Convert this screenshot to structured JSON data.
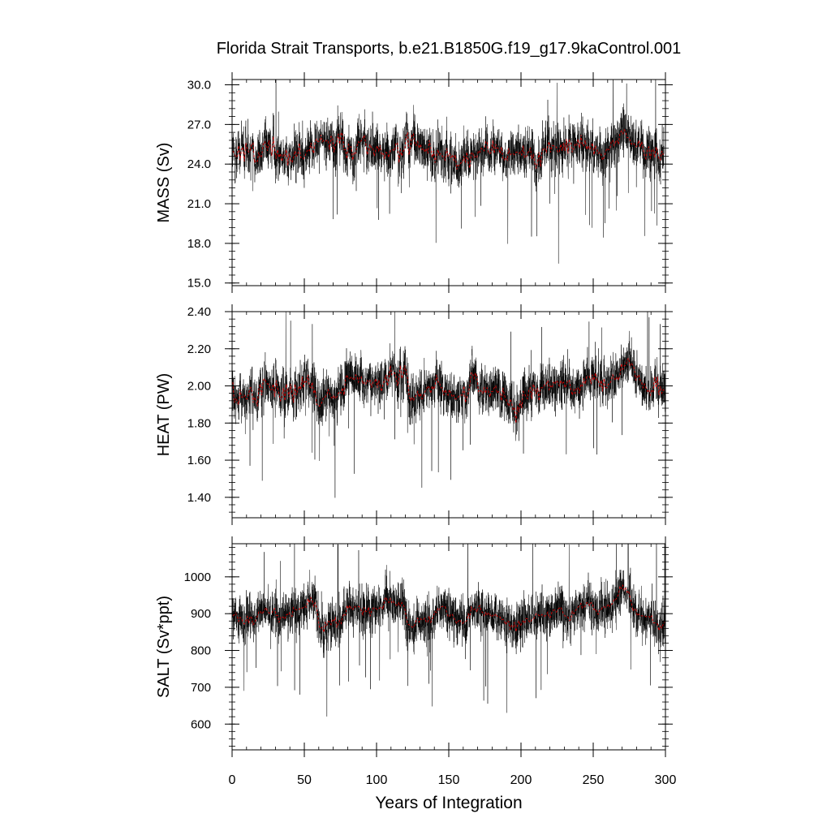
{
  "chart_data": {
    "type": "line",
    "title": "Florida Strait Transports, b.e21.B1850G.f19_g17.9kaControl.001",
    "xlabel": "Years of Integration",
    "xlim": [
      0,
      300
    ],
    "x_ticks": [
      "0",
      "50",
      "100",
      "150",
      "200",
      "250",
      "300"
    ],
    "colors": {
      "monthly": "#000000",
      "annual": "#cc0000",
      "axes": "#000000"
    },
    "panels": [
      {
        "ylabel": "MASS (Sv)",
        "ylim": [
          14.8,
          30.4
        ],
        "y_ticks": [
          "15.0",
          "18.0",
          "21.0",
          "24.0",
          "27.0",
          "30.0"
        ],
        "mean": 25.0,
        "annual_means": [
          25.0,
          24.8,
          24.5,
          24.6,
          25.4,
          24.3,
          25.1,
          25.3,
          24.2,
          25.6,
          25.1,
          24.9,
          25.0,
          25.5,
          25.6,
          24.1,
          24.3,
          24.2,
          24.9,
          24.5,
          24.6,
          25.5,
          25.7,
          25.4,
          25.0,
          25.8,
          25.3,
          24.6,
          26.1,
          25.0,
          24.4,
          25.1,
          24.5,
          24.8,
          24.2,
          24.7,
          24.6,
          25.1,
          23.9,
          24.8,
          24.3,
          24.1,
          24.5,
          25.0,
          24.6,
          24.7,
          25.6,
          24.5,
          24.5,
          24.4,
          24.6,
          24.9,
          25.1,
          25.0,
          25.6,
          25.2,
          24.8,
          25.7,
          25.9,
          25.7,
          25.7,
          26.2,
          25.7,
          25.8,
          25.7,
          25.8,
          25.8,
          25.1,
          26.1,
          26.0,
          24.9,
          25.4,
          25.7,
          26.3,
          25.5,
          26.4,
          26.2,
          25.1,
          25.1,
          24.4,
          25.5,
          25.3,
          25.3,
          24.3,
          24.9,
          24.8,
          25.4,
          25.7,
          25.6,
          25.8,
          25.9,
          26.2,
          25.6,
          24.7,
          25.0,
          25.5,
          25.2,
          25.2,
          24.6,
          25.1,
          25.4,
          25.0,
          25.4,
          24.7,
          24.8,
          24.4,
          24.9,
          24.8,
          24.5,
          25.0,
          25.0,
          25.1,
          25.0,
          25.6,
          25.6,
          24.1,
          25.1,
          24.6,
          25.0,
          25.1,
          26.1,
          26.4,
          24.7,
          25.3,
          26.2,
          26.3,
          25.5,
          25.4,
          25.7,
          25.2,
          25.5,
          25.1,
          25.2,
          24.9,
          25.2,
          24.8,
          25.8,
          25.3,
          24.5,
          25.0,
          24.1,
          24.6,
          25.1,
          24.7,
          24.8,
          24.6,
          24.5,
          24.3,
          25.2,
          24.6,
          24.8,
          24.5,
          24.7,
          24.3,
          24.7,
          23.6,
          23.9,
          23.9,
          24.1,
          24.1,
          24.6,
          24.1,
          24.9,
          24.1,
          23.7,
          24.8,
          24.9,
          24.5,
          24.6,
          24.5,
          25.0,
          24.9,
          25.2,
          25.1,
          25.0,
          25.7,
          25.7,
          24.8,
          24.8,
          24.9,
          25.8,
          24.8,
          25.5,
          25.2,
          25.2,
          24.8,
          25.3,
          24.4,
          24.3,
          24.5,
          24.3,
          25.2,
          24.7,
          24.8,
          24.8,
          24.7,
          24.9,
          24.9,
          24.8,
          24.9,
          24.7,
          25.4,
          24.5,
          24.5,
          24.8,
          25.0,
          25.2,
          24.4,
          24.7,
          24.1,
          23.7,
          24.1,
          24.9,
          23.8,
          24.9,
          25.2,
          25.2,
          24.9,
          25.4,
          25.7,
          24.9,
          25.4,
          25.4,
          25.3,
          25.3,
          24.9,
          24.9,
          25.5,
          25.0,
          25.6,
          25.0,
          25.9,
          24.8,
          25.8,
          25.6,
          24.9,
          25.2,
          25.5,
          25.4,
          25.9,
          25.2,
          26.2,
          25.4,
          25.4,
          25.8,
          25.1,
          25.4,
          25.1,
          25.3,
          25.6,
          24.7,
          25.4,
          25.1,
          24.8,
          24.9,
          24.7,
          24.3,
          24.5,
          24.9,
          25.2,
          25.1,
          25.1,
          25.7,
          25.8,
          25.4,
          25.7,
          25.8,
          25.5,
          26.3,
          26.5,
          26.3,
          26.6,
          26.4,
          26.0,
          26.0,
          25.8,
          25.5,
          25.6,
          25.5,
          25.3,
          25.4,
          25.8,
          25.3,
          25.7,
          25.2,
          24.6,
          24.4,
          25.1,
          25.3,
          24.4,
          25.1,
          25.1,
          24.5,
          25.3,
          24.9,
          24.4,
          24.3,
          25.0,
          24.7
        ]
      },
      {
        "ylabel": "HEAT (PW)",
        "ylim": [
          1.29,
          2.4
        ],
        "y_ticks": [
          "1.40",
          "1.60",
          "1.80",
          "2.00",
          "2.20",
          "2.40"
        ],
        "mean": 1.99,
        "annual_means": [
          2.02,
          1.91,
          1.93,
          1.92,
          1.9,
          1.98,
          1.94,
          1.94,
          1.95,
          1.93,
          1.93,
          1.96,
          1.99,
          1.99,
          1.91,
          1.94,
          1.92,
          1.89,
          1.98,
          2.01,
          1.95,
          2.03,
          2.04,
          2.02,
          2.01,
          2.01,
          1.98,
          1.98,
          2.01,
          1.94,
          2.03,
          1.99,
          1.96,
          1.92,
          1.94,
          1.99,
          1.92,
          2.01,
          1.98,
          1.94,
          2.01,
          1.96,
          1.91,
          2.01,
          1.95,
          1.98,
          2.0,
          1.98,
          2.05,
          1.99,
          2.03,
          2.02,
          2.06,
          2.0,
          1.99,
          2.02,
          1.96,
          1.98,
          1.9,
          1.9,
          1.89,
          1.9,
          1.92,
          1.94,
          1.94,
          1.95,
          1.98,
          1.96,
          1.94,
          1.93,
          1.95,
          1.93,
          1.94,
          1.96,
          1.97,
          1.96,
          1.99,
          1.95,
          2.04,
          2.06,
          2.04,
          2.04,
          2.05,
          2.04,
          2.03,
          2.06,
          2.05,
          2.02,
          2.05,
          2.05,
          2.01,
          2.02,
          2.01,
          2.03,
          2.02,
          2.03,
          1.99,
          2.02,
          2.02,
          2.04,
          1.99,
          2.03,
          2.0,
          1.97,
          2.01,
          2.03,
          2.06,
          2.0,
          2.04,
          2.11,
          2.06,
          2.07,
          2.07,
          2.05,
          2.0,
          2.04,
          2.11,
          2.04,
          2.06,
          2.11,
          2.08,
          2.04,
          1.95,
          1.92,
          1.94,
          1.92,
          1.94,
          1.95,
          1.97,
          1.94,
          1.96,
          1.93,
          1.94,
          1.97,
          1.98,
          2.0,
          1.99,
          1.96,
          2.0,
          1.98,
          2.0,
          2.06,
          2.02,
          2.02,
          1.99,
          1.99,
          1.95,
          1.98,
          1.96,
          1.95,
          1.98,
          1.96,
          1.94,
          1.95,
          1.93,
          1.93,
          1.94,
          1.95,
          1.95,
          1.95,
          2.0,
          1.91,
          1.94,
          1.96,
          2.0,
          2.07,
          2.07,
          2.04,
          2.07,
          2.05,
          1.97,
          1.98,
          1.97,
          1.96,
          1.99,
          1.96,
          1.99,
          1.97,
          1.94,
          1.97,
          1.97,
          1.99,
          2.0,
          1.96,
          1.97,
          1.96,
          1.92,
          1.99,
          1.95,
          1.93,
          1.91,
          1.89,
          1.93,
          1.91,
          1.87,
          1.88,
          1.8,
          1.89,
          1.86,
          1.92,
          1.88,
          1.97,
          1.96,
          1.94,
          1.93,
          1.98,
          1.99,
          1.93,
          2.01,
          1.99,
          1.96,
          1.99,
          1.92,
          1.99,
          1.99,
          1.99,
          2.01,
          2.01,
          2.03,
          1.98,
          2.0,
          1.99,
          2.02,
          2.01,
          2.03,
          2.02,
          2.0,
          2.03,
          2.01,
          2.02,
          1.99,
          2.01,
          2.03,
          2.03,
          1.98,
          1.95,
          1.98,
          1.96,
          1.99,
          1.99,
          1.96,
          2.01,
          2.0,
          2.04,
          2.01,
          2.05,
          2.05,
          2.05,
          2.01,
          2.06,
          2.03,
          2.07,
          2.03,
          2.03,
          2.0,
          2.03,
          1.97,
          2.04,
          1.99,
          1.99,
          2.01,
          2.01,
          2.03,
          2.06,
          2.04,
          2.03,
          2.05,
          2.03,
          2.06,
          2.12,
          2.09,
          2.11,
          2.11,
          2.14,
          2.15,
          2.11,
          2.12,
          2.11,
          2.09,
          2.03,
          2.05,
          2.06,
          2.03,
          2.02,
          1.99,
          2.01,
          1.99,
          1.97,
          1.98,
          1.95,
          1.98,
          1.97,
          2.05,
          1.99,
          2.05,
          1.95,
          2.0,
          1.96,
          1.98,
          1.97
        ]
      },
      {
        "ylabel": "SALT (Sv*ppt)",
        "ylim": [
          530,
          1090
        ],
        "y_ticks": [
          "600",
          "700",
          "800",
          "900",
          "1000"
        ],
        "mean": 900,
        "annual_means": [
          894,
          897,
          902,
          894,
          879,
          890,
          888,
          875,
          872,
          880,
          892,
          874,
          893,
          890,
          870,
          875,
          883,
          893,
          905,
          907,
          899,
          904,
          909,
          917,
          907,
          902,
          901,
          902,
          910,
          914,
          895,
          895,
          876,
          891,
          891,
          890,
          885,
          897,
          898,
          903,
          894,
          893,
          917,
          913,
          910,
          912,
          912,
          917,
          915,
          917,
          920,
          917,
          941,
          929,
          944,
          935,
          920,
          929,
          915,
          890,
          861,
          860,
          863,
          849,
          876,
          868,
          879,
          878,
          870,
          885,
          881,
          889,
          862,
          874,
          881,
          873,
          892,
          900,
          896,
          923,
          913,
          923,
          913,
          911,
          920,
          918,
          917,
          920,
          917,
          908,
          897,
          916,
          906,
          905,
          918,
          893,
          906,
          914,
          917,
          914,
          911,
          913,
          917,
          919,
          912,
          938,
          945,
          935,
          930,
          941,
          930,
          935,
          927,
          924,
          921,
          930,
          921,
          930,
          924,
          916,
          892,
          871,
          870,
          868,
          864,
          862,
          870,
          883,
          888,
          877,
          886,
          883,
          884,
          888,
          876,
          877,
          893,
          876,
          885,
          895,
          906,
          903,
          914,
          910,
          919,
          919,
          921,
          919,
          904,
          892,
          892,
          899,
          898,
          888,
          882,
          873,
          879,
          884,
          877,
          873,
          878,
          878,
          881,
          899,
          887,
          918,
          911,
          911,
          914,
          904,
          918,
          922,
          906,
          903,
          895,
          903,
          895,
          903,
          897,
          891,
          896,
          893,
          900,
          893,
          891,
          891,
          883,
          885,
          879,
          870,
          880,
          879,
          856,
          868,
          863,
          877,
          851,
          867,
          881,
          867,
          873,
          880,
          874,
          887,
          886,
          880,
          876,
          884,
          884,
          891,
          900,
          899,
          895,
          893,
          898,
          893,
          894,
          896,
          904,
          889,
          891,
          906,
          910,
          909,
          904,
          912,
          915,
          918,
          909,
          897,
          894,
          892,
          891,
          881,
          884,
          906,
          900,
          907,
          913,
          918,
          922,
          928,
          915,
          917,
          921,
          930,
          930,
          922,
          930,
          927,
          911,
          914,
          902,
          898,
          910,
          910,
          919,
          919,
          916,
          920,
          926,
          919,
          925,
          928,
          940,
          938,
          944,
          952,
          975,
          968,
          977,
          963,
          969,
          958,
          962,
          944,
          929,
          907,
          914,
          912,
          894,
          899,
          895,
          894,
          894,
          894,
          892,
          891,
          893,
          888,
          894,
          875,
          875,
          874,
          872,
          854,
          866,
          861,
          872,
          877
        ]
      }
    ]
  }
}
